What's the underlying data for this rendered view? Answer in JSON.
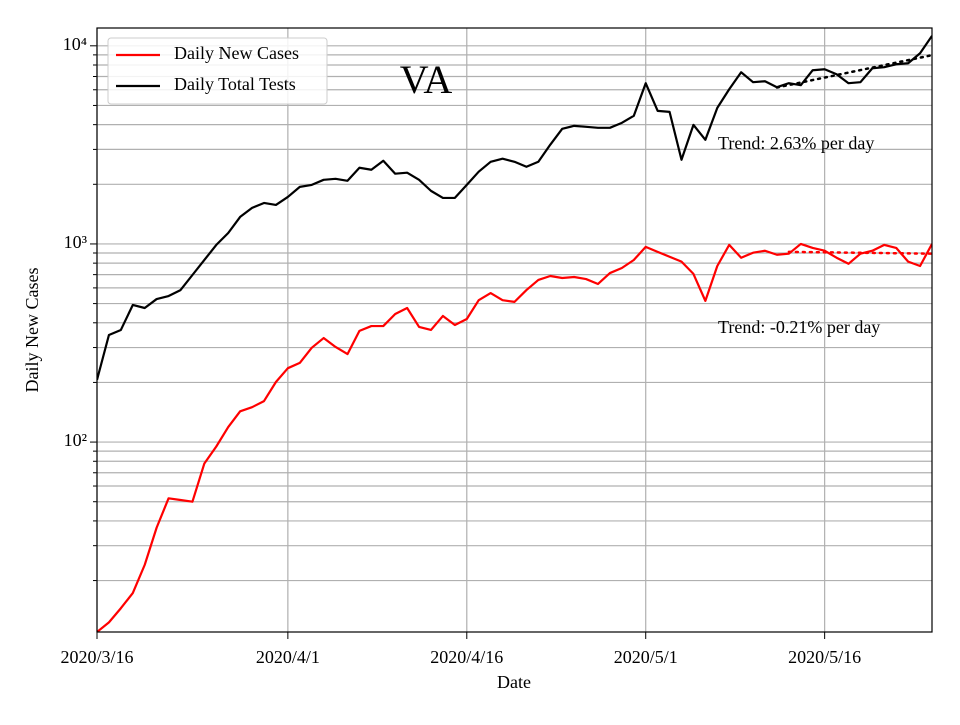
{
  "chart_data": {
    "type": "line",
    "x_label": "Date",
    "y_label": "Daily New Cases",
    "annotations": [
      {
        "text": "VA"
      },
      {
        "text": "Trend: 2.63% per day"
      },
      {
        "text": "Trend: -0.21% per day"
      }
    ],
    "x": [
      "2020/3/16",
      "2020/3/17",
      "2020/3/18",
      "2020/3/19",
      "2020/3/20",
      "2020/3/21",
      "2020/3/22",
      "2020/3/23",
      "2020/3/24",
      "2020/3/25",
      "2020/3/26",
      "2020/3/27",
      "2020/3/28",
      "2020/3/29",
      "2020/3/30",
      "2020/3/31",
      "2020/4/1",
      "2020/4/2",
      "2020/4/3",
      "2020/4/4",
      "2020/4/5",
      "2020/4/6",
      "2020/4/7",
      "2020/4/8",
      "2020/4/9",
      "2020/4/10",
      "2020/4/11",
      "2020/4/12",
      "2020/4/13",
      "2020/4/14",
      "2020/4/15",
      "2020/4/16",
      "2020/4/17",
      "2020/4/18",
      "2020/4/19",
      "2020/4/20",
      "2020/4/21",
      "2020/4/22",
      "2020/4/23",
      "2020/4/24",
      "2020/4/25",
      "2020/4/26",
      "2020/4/27",
      "2020/4/28",
      "2020/4/29",
      "2020/4/30",
      "2020/5/1",
      "2020/5/2",
      "2020/5/3",
      "2020/5/4",
      "2020/5/5",
      "2020/5/6",
      "2020/5/7",
      "2020/5/8",
      "2020/5/9",
      "2020/5/10",
      "2020/5/11",
      "2020/5/12",
      "2020/5/13",
      "2020/5/14",
      "2020/5/15",
      "2020/5/16",
      "2020/5/17",
      "2020/5/18",
      "2020/5/19",
      "2020/5/20",
      "2020/5/21",
      "2020/5/22",
      "2020/5/23",
      "2020/5/24",
      "2020/5/25"
    ],
    "series": [
      {
        "name": "Daily New Cases",
        "color": "#ff0000",
        "values": [
          11,
          12.3,
          14.5,
          17.3,
          24,
          37,
          52,
          51,
          50,
          78,
          95,
          119,
          143,
          150,
          161,
          201,
          236,
          251,
          299,
          335,
          302,
          278,
          364,
          385,
          385,
          443,
          475,
          381,
          368,
          433,
          390,
          418,
          520,
          565,
          520,
          510,
          585,
          658,
          689,
          673,
          681,
          665,
          628,
          713,
          756,
          830,
          966,
          912,
          862,
          814,
          706,
          516,
          774,
          989,
          852,
          903,
          924,
          882,
          893,
          1000,
          955,
          924,
          852,
          794,
          893,
          924,
          989,
          955,
          814,
          774,
          1000
        ]
      },
      {
        "name": "Daily Total Tests",
        "color": "#000000",
        "values": [
          206,
          347,
          368,
          492,
          475,
          527,
          546,
          585,
          697,
          830,
          989,
          1136,
          1369,
          1520,
          1610,
          1573,
          1727,
          1941,
          1986,
          2107,
          2132,
          2083,
          2424,
          2368,
          2628,
          2262,
          2289,
          2107,
          1853,
          1707,
          1707,
          1986,
          2316,
          2598,
          2693,
          2598,
          2452,
          2598,
          3170,
          3810,
          3945,
          3900,
          3856,
          3856,
          4085,
          4432,
          6475,
          4695,
          4640,
          2660,
          3990,
          3354,
          4860,
          6037,
          7355,
          6551,
          6627,
          6180,
          6475,
          6328,
          7530,
          7617,
          7186,
          6475,
          6551,
          7706,
          7800,
          8070,
          8165,
          9170,
          11230
        ]
      }
    ],
    "trend_lines": [
      {
        "color": "#ff0000",
        "x": [
          "2020/5/13",
          "2020/5/25"
        ],
        "values": [
          912,
          893
        ]
      },
      {
        "color": "#000000",
        "x": [
          "2020/5/12",
          "2020/5/25"
        ],
        "values": [
          6160,
          8970
        ]
      }
    ],
    "xlim": [
      "2020/3/16",
      "2020/5/25"
    ],
    "xticks": [
      "2020/3/16",
      "2020/4/1",
      "2020/4/16",
      "2020/5/1",
      "2020/5/16"
    ],
    "ylim": [
      11,
      12300
    ],
    "log_y": true,
    "yticks": [
      {
        "value": 100,
        "label": "10²"
      },
      {
        "value": 1000,
        "label": "10³"
      },
      {
        "value": 10000,
        "label": "10⁴"
      }
    ],
    "yminor": [
      20,
      30,
      40,
      50,
      60,
      70,
      80,
      90,
      200,
      300,
      400,
      500,
      600,
      700,
      800,
      900,
      2000,
      3000,
      4000,
      5000,
      6000,
      7000,
      8000,
      9000
    ],
    "grid": true,
    "legend": "upper left"
  }
}
